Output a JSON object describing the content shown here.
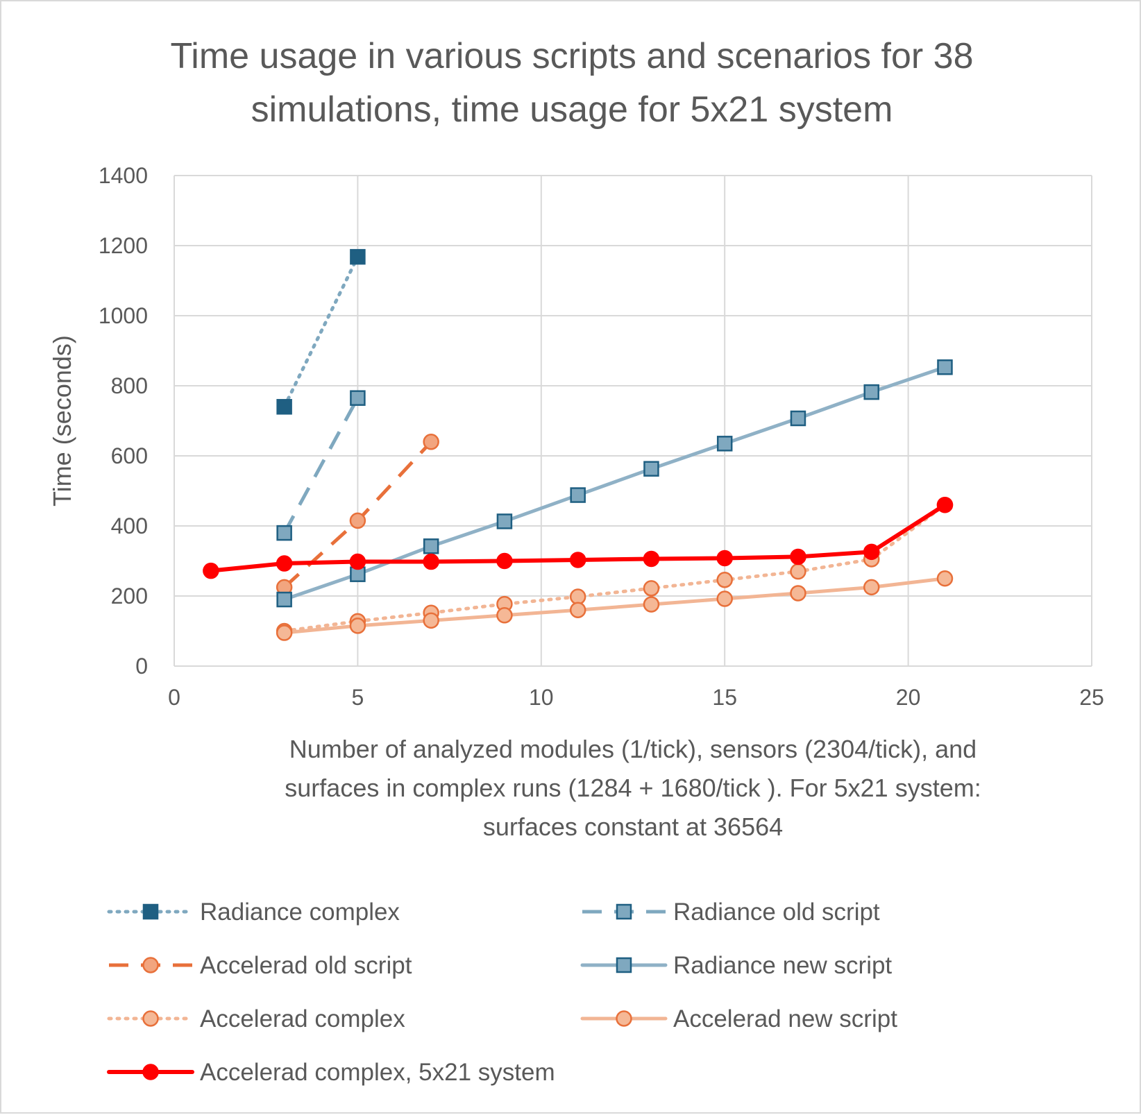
{
  "chart_data": {
    "type": "scatter",
    "title_lines": [
      "Time usage in various scripts and scenarios for 38",
      "simulations, time usage for 5x21 system"
    ],
    "xlabel_lines": [
      "Number of analyzed modules (1/tick), sensors (2304/tick), and",
      "surfaces in complex runs (1284 + 1680/tick ). For 5x21 system:",
      "surfaces constant at 36564"
    ],
    "ylabel": "Time (seconds)",
    "xlim": [
      0,
      25
    ],
    "ylim": [
      0,
      1400
    ],
    "x_ticks": [
      0,
      5,
      10,
      15,
      20,
      25
    ],
    "y_ticks": [
      0,
      200,
      400,
      600,
      800,
      1000,
      1200,
      1400
    ],
    "grid": true,
    "legend_position": "bottom",
    "series": [
      {
        "name": "Radiance complex",
        "color": "#1f5f82",
        "line_color": "#7fa8bf",
        "line_style": "dotted",
        "marker": "square",
        "marker_fill": "#1f5f82",
        "points": [
          [
            3,
            740
          ],
          [
            5,
            1168
          ]
        ]
      },
      {
        "name": "Radiance old script",
        "color": "#1f5f82",
        "line_color": "#7fa8bf",
        "line_style": "dashed",
        "marker": "square",
        "marker_fill": "#7fa8bf",
        "points": [
          [
            3,
            380
          ],
          [
            5,
            765
          ]
        ]
      },
      {
        "name": "Accelerad old script",
        "color": "#e8703a",
        "line_color": "#e8703a",
        "line_style": "dashed",
        "marker": "circle",
        "marker_fill": "#f2a57f",
        "points": [
          [
            3,
            225
          ],
          [
            5,
            415
          ],
          [
            7,
            640
          ]
        ]
      },
      {
        "name": "Radiance new script",
        "color": "#1f5f82",
        "line_color": "#8fb1c6",
        "line_style": "solid",
        "marker": "square",
        "marker_fill": "#7fa8bf",
        "points": [
          [
            3,
            190
          ],
          [
            5,
            262
          ],
          [
            7,
            342
          ],
          [
            9,
            413
          ],
          [
            11,
            488
          ],
          [
            13,
            563
          ],
          [
            15,
            635
          ],
          [
            17,
            707
          ],
          [
            19,
            782
          ],
          [
            21,
            853
          ]
        ]
      },
      {
        "name": "Accelerad complex",
        "color": "#e8703a",
        "line_color": "#f2b594",
        "line_style": "dotted",
        "marker": "circle",
        "marker_fill": "#f5b896",
        "points": [
          [
            3,
            100
          ],
          [
            5,
            128
          ],
          [
            7,
            152
          ],
          [
            9,
            177
          ],
          [
            11,
            198
          ],
          [
            13,
            222
          ],
          [
            15,
            246
          ],
          [
            17,
            270
          ],
          [
            19,
            305
          ],
          [
            21,
            460
          ]
        ]
      },
      {
        "name": "Accelerad new script",
        "color": "#e8703a",
        "line_color": "#f2b594",
        "line_style": "solid",
        "marker": "circle",
        "marker_fill": "#f5b896",
        "points": [
          [
            3,
            95
          ],
          [
            5,
            115
          ],
          [
            7,
            130
          ],
          [
            9,
            145
          ],
          [
            11,
            160
          ],
          [
            13,
            176
          ],
          [
            15,
            192
          ],
          [
            17,
            208
          ],
          [
            19,
            225
          ],
          [
            21,
            250
          ]
        ]
      },
      {
        "name": "Accelerad complex, 5x21 system",
        "color": "#ff0000",
        "line_color": "#ff0000",
        "line_style": "solid",
        "marker": "circle",
        "marker_fill": "#ff0000",
        "points": [
          [
            1,
            272
          ],
          [
            3,
            293
          ],
          [
            5,
            298
          ],
          [
            7,
            298
          ],
          [
            9,
            300
          ],
          [
            11,
            303
          ],
          [
            13,
            306
          ],
          [
            15,
            308
          ],
          [
            17,
            312
          ],
          [
            19,
            326
          ],
          [
            21,
            460
          ]
        ]
      }
    ],
    "legend_order": [
      0,
      1,
      2,
      3,
      4,
      5,
      6
    ]
  }
}
